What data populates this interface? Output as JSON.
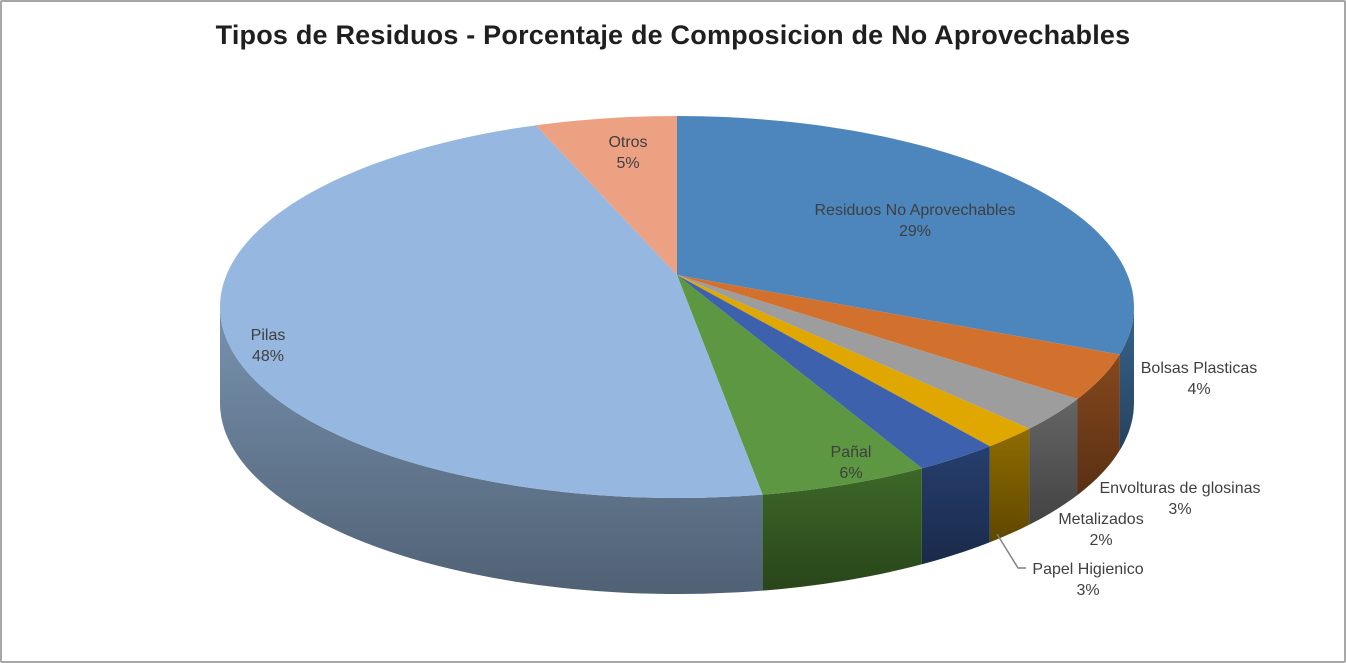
{
  "window": {
    "background": "#ffffff",
    "border_color": "#a7a7a7"
  },
  "chart_data": {
    "type": "pie",
    "style": "3d",
    "title": "Tipos de Residuos - Porcentaje de Composicion de No Aprovechables",
    "legend_position": "none",
    "start_angle_deg": 0,
    "direction": "clockwise",
    "units": "%",
    "label_color": "#3f3f3f",
    "leader_line_color": "#7f7f7f",
    "slices": [
      {
        "label": "Residuos No Aprovechables",
        "value": 29,
        "pct_label": "29%",
        "color": "#4c86bd",
        "side_color": "#2c4e6e",
        "label_placement": "inside"
      },
      {
        "label": "Bolsas Plasticas",
        "value": 4,
        "pct_label": "4%",
        "color": "#d2702e",
        "side_color": "#693817",
        "label_placement": "outside"
      },
      {
        "label": "Envolturas de glosinas",
        "value": 3,
        "pct_label": "3%",
        "color": "#9d9d9d",
        "side_color": "#4f4f4f",
        "label_placement": "outside"
      },
      {
        "label": "Metalizados",
        "value": 2,
        "pct_label": "2%",
        "color": "#e0a700",
        "side_color": "#705400",
        "label_placement": "outside"
      },
      {
        "label": "Papel Higienico",
        "value": 3,
        "pct_label": "3%",
        "color": "#3d61ac",
        "side_color": "#1e3156",
        "label_placement": "outside",
        "leader_line": true
      },
      {
        "label": "Pañal",
        "value": 6,
        "pct_label": "6%",
        "color": "#5d9742",
        "side_color": "#30511f",
        "label_placement": "inside"
      },
      {
        "label": "Pilas",
        "value": 48,
        "pct_label": "48%",
        "color": "#96b7df",
        "side_color": "#5e7289",
        "label_placement": "inside"
      },
      {
        "label": "Otros",
        "value": 5,
        "pct_label": "5%",
        "color": "#eda183",
        "side_color": "#76503f",
        "label_placement": "inside"
      }
    ]
  }
}
